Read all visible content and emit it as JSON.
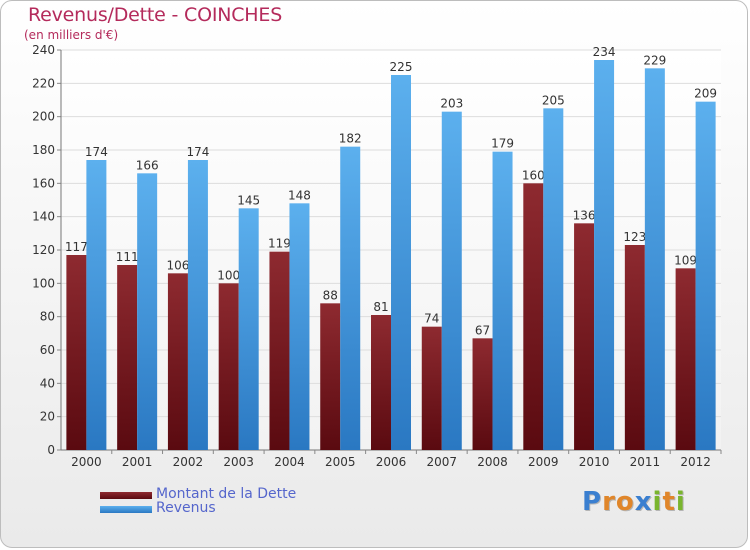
{
  "chart_data": {
    "type": "bar",
    "title": "Revenus/Dette - COINCHES",
    "subtitle": "(en milliers d'€)",
    "categories": [
      "2000",
      "2001",
      "2002",
      "2003",
      "2004",
      "2005",
      "2006",
      "2007",
      "2008",
      "2009",
      "2010",
      "2011",
      "2012"
    ],
    "series": [
      {
        "name": "Montant de la Dette",
        "color": "#7a1c22",
        "values": [
          117,
          111,
          106,
          100,
          119,
          88,
          81,
          74,
          67,
          160,
          136,
          123,
          109
        ]
      },
      {
        "name": "Revenus",
        "color": "#4fa6e6",
        "values": [
          174,
          166,
          174,
          145,
          148,
          182,
          225,
          203,
          179,
          205,
          234,
          229,
          209
        ]
      }
    ],
    "ylim": [
      0,
      240
    ],
    "yticks": [
      0,
      20,
      40,
      60,
      80,
      100,
      120,
      140,
      160,
      180,
      200,
      220,
      240
    ],
    "grid": true,
    "legend_position": "bottom-left"
  },
  "logo": {
    "text": "Proxiti",
    "letters": [
      "P",
      "r",
      "o",
      "x",
      "i",
      "t",
      "i"
    ],
    "colors": [
      "#3a7fd0",
      "#e0862a",
      "#e0862a",
      "#3a7fd0",
      "#7ab52e",
      "#e0862a",
      "#7ab52e"
    ]
  }
}
